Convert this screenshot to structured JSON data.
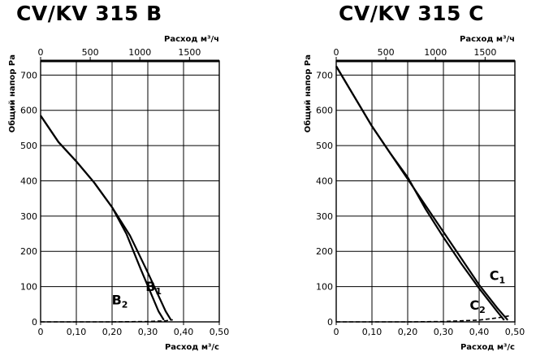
{
  "chart_data": [
    {
      "type": "line",
      "title": "CV/KV 315 B",
      "xlabel": "Расход м³/с",
      "x2label": "Расход м³/ч",
      "ylabel": "Общий напор Ра",
      "xlim": [
        0,
        0.5
      ],
      "ylim": [
        0,
        740
      ],
      "x2lim": [
        0,
        1800
      ],
      "xticks": [
        0,
        0.1,
        0.2,
        0.3,
        0.4,
        0.5
      ],
      "xtick_labels": [
        "0",
        "0,10",
        "0,20",
        "0,30",
        "0,40",
        "0,50"
      ],
      "x2ticks": [
        0,
        500,
        1000,
        1500
      ],
      "x2tick_labels": [
        "0",
        "500",
        "1000",
        "1500"
      ],
      "yticks": [
        0,
        100,
        200,
        300,
        400,
        500,
        600,
        700
      ],
      "ytick_labels": [
        "0",
        "100",
        "200",
        "300",
        "400",
        "500",
        "600",
        "700"
      ],
      "grid": true,
      "series": [
        {
          "name": "B1",
          "label_main": "B",
          "label_sub": "1",
          "points": [
            [
              0,
              585
            ],
            [
              0.05,
              510
            ],
            [
              0.1,
              455
            ],
            [
              0.15,
              395
            ],
            [
              0.2,
              325
            ],
            [
              0.25,
              245
            ],
            [
              0.3,
              140
            ],
            [
              0.35,
              30
            ],
            [
              0.365,
              5
            ]
          ]
        },
        {
          "name": "B2",
          "label_main": "B",
          "label_sub": "2",
          "points": [
            [
              0,
              585
            ],
            [
              0.05,
              510
            ],
            [
              0.1,
              455
            ],
            [
              0.15,
              395
            ],
            [
              0.2,
              325
            ],
            [
              0.24,
              250
            ],
            [
              0.28,
              150
            ],
            [
              0.33,
              30
            ],
            [
              0.345,
              5
            ]
          ]
        },
        {
          "name": "min",
          "dashed": true,
          "points": [
            [
              0,
              0
            ],
            [
              0.1,
              0
            ],
            [
              0.2,
              0
            ],
            [
              0.3,
              1
            ],
            [
              0.35,
              3
            ],
            [
              0.37,
              6
            ]
          ]
        }
      ]
    },
    {
      "type": "line",
      "title": "CV/KV 315 C",
      "xlabel": "Расход м³/с",
      "x2label": "Расход м³/ч",
      "ylabel": "Общий напор Ра",
      "xlim": [
        0,
        0.5
      ],
      "ylim": [
        0,
        740
      ],
      "x2lim": [
        0,
        1800
      ],
      "xticks": [
        0,
        0.1,
        0.2,
        0.3,
        0.4,
        0.5
      ],
      "xtick_labels": [
        "0",
        "0,10",
        "0,20",
        "0,30",
        "0,40",
        "0,50"
      ],
      "x2ticks": [
        0,
        500,
        1000,
        1500
      ],
      "x2tick_labels": [
        "0",
        "500",
        "1000",
        "1500"
      ],
      "yticks": [
        0,
        100,
        200,
        300,
        400,
        500,
        600,
        700
      ],
      "ytick_labels": [
        "0",
        "100",
        "200",
        "300",
        "400",
        "500",
        "600",
        "700"
      ],
      "grid": true,
      "series": [
        {
          "name": "C1",
          "label_main": "C",
          "label_sub": "1",
          "points": [
            [
              0,
              725
            ],
            [
              0.05,
              640
            ],
            [
              0.1,
              555
            ],
            [
              0.15,
              480
            ],
            [
              0.2,
              405
            ],
            [
              0.25,
              330
            ],
            [
              0.3,
              255
            ],
            [
              0.35,
              180
            ],
            [
              0.4,
              105
            ],
            [
              0.45,
              40
            ],
            [
              0.48,
              5
            ]
          ]
        },
        {
          "name": "C2",
          "label_main": "C",
          "label_sub": "2",
          "points": [
            [
              0,
              725
            ],
            [
              0.05,
              640
            ],
            [
              0.1,
              555
            ],
            [
              0.15,
              480
            ],
            [
              0.2,
              410
            ],
            [
              0.25,
              320
            ],
            [
              0.3,
              240
            ],
            [
              0.35,
              165
            ],
            [
              0.4,
              95
            ],
            [
              0.45,
              30
            ],
            [
              0.47,
              5
            ]
          ]
        },
        {
          "name": "min",
          "dashed": true,
          "points": [
            [
              0,
              0
            ],
            [
              0.1,
              0
            ],
            [
              0.2,
              0
            ],
            [
              0.3,
              1
            ],
            [
              0.4,
              5
            ],
            [
              0.45,
              11
            ],
            [
              0.49,
              18
            ]
          ]
        }
      ]
    }
  ]
}
